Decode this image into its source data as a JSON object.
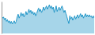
{
  "chart_data": {
    "type": "area",
    "values": [
      72,
      68,
      70,
      65,
      68,
      62,
      65,
      60,
      63,
      58,
      62,
      57,
      60,
      63,
      58,
      62,
      70,
      75,
      68,
      72,
      78,
      72,
      76,
      70,
      74,
      80,
      74,
      78,
      84,
      78,
      82,
      76,
      80,
      74,
      78,
      72,
      76,
      82,
      86,
      80,
      84,
      78,
      82,
      88,
      82,
      86,
      90,
      84,
      88,
      92,
      86,
      90,
      84,
      88,
      78,
      84,
      90,
      80,
      84,
      88,
      82,
      86,
      90,
      84,
      78,
      82,
      76,
      70,
      64,
      58,
      72,
      66,
      70,
      64,
      68,
      72,
      66,
      70,
      74,
      68,
      72,
      76,
      70,
      74,
      68,
      72,
      76,
      70,
      74,
      70,
      74,
      70,
      72,
      68,
      72,
      68
    ],
    "color": "#2196c8",
    "ylim": [
      40,
      98
    ],
    "tick_labels": false
  }
}
